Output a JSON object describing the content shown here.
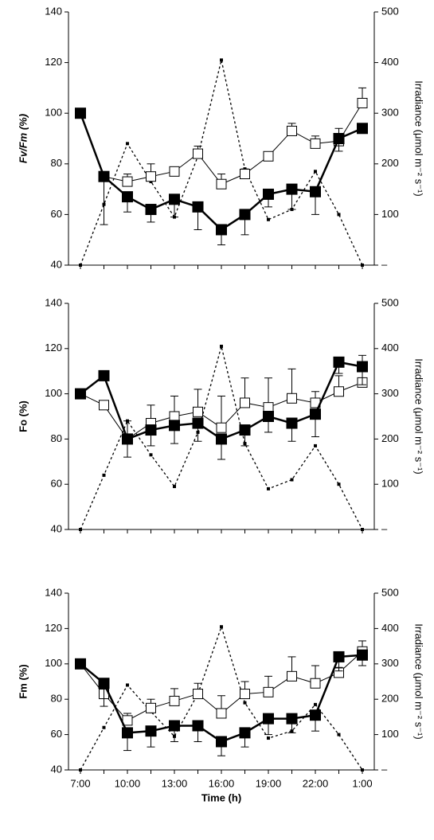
{
  "chart_data": [
    {
      "type": "line",
      "ylabel": "Fv/Fm (%)",
      "y2label": "Irradiance (μmol m⁻² s⁻¹)",
      "categories": [
        "7:00",
        null,
        "10:00",
        null,
        "13:00",
        null,
        "16:00",
        null,
        "19:00",
        null,
        "22:00",
        null,
        "1:00"
      ],
      "ylim": [
        40,
        140
      ],
      "yticks": [
        40,
        60,
        80,
        100,
        120,
        140
      ],
      "y2lim": [
        0,
        500
      ],
      "y2ticks": [
        {
          "value": 0,
          "label": "–"
        },
        100,
        200,
        300,
        400,
        500
      ],
      "series": [
        {
          "color": "#000000",
          "marker": "dot",
          "dash": true,
          "axis": "y2",
          "values": [
            0,
            120,
            240,
            165,
            95,
            215,
            405,
            190,
            90,
            110,
            185,
            100,
            0
          ]
        },
        {
          "color": "#000000",
          "marker": "open",
          "values": [
            100,
            75,
            73,
            75,
            77,
            84,
            72,
            76,
            83,
            93,
            88,
            89,
            104
          ],
          "errors": [
            0,
            0,
            3,
            5,
            0,
            3,
            4,
            2,
            0,
            3,
            3,
            5,
            6
          ]
        },
        {
          "color": "#000000",
          "marker": "filled",
          "values": [
            100,
            75,
            67,
            62,
            66,
            63,
            54,
            60,
            68,
            70,
            69,
            90,
            94
          ],
          "errors": [
            0,
            19,
            6,
            5,
            7,
            9,
            6,
            8,
            5,
            8,
            9,
            5,
            0
          ]
        }
      ]
    },
    {
      "type": "line",
      "ylabel": "Fo (%)",
      "y2label": "Irradiance (μmol m⁻² s⁻¹)",
      "categories": [
        "7:00",
        null,
        "10:00",
        null,
        "13:00",
        null,
        "16:00",
        null,
        "19:00",
        null,
        "22:00",
        null,
        "1:00"
      ],
      "ylim": [
        40,
        140
      ],
      "yticks": [
        40,
        60,
        80,
        100,
        120,
        140
      ],
      "y2lim": [
        0,
        500
      ],
      "y2ticks": [
        {
          "value": 0,
          "label": "–"
        },
        100,
        200,
        300,
        400,
        500
      ],
      "series": [
        {
          "color": "#000000",
          "marker": "dot",
          "dash": true,
          "axis": "y2",
          "values": [
            0,
            120,
            240,
            165,
            95,
            215,
            405,
            190,
            90,
            110,
            185,
            100,
            0
          ]
        },
        {
          "color": "#000000",
          "marker": "open",
          "values": [
            100,
            95,
            80,
            87,
            90,
            92,
            85,
            96,
            94,
            98,
            96,
            101,
            105
          ],
          "errors": [
            0,
            0,
            8,
            8,
            9,
            10,
            14,
            11,
            13,
            13,
            5,
            7,
            12
          ]
        },
        {
          "color": "#000000",
          "marker": "filled",
          "values": [
            100,
            108,
            80,
            84,
            86,
            87,
            80,
            84,
            90,
            87,
            91,
            114,
            112
          ],
          "errors": [
            0,
            0,
            8,
            7,
            8,
            8,
            9,
            7,
            7,
            8,
            10,
            5,
            8
          ]
        }
      ]
    },
    {
      "type": "line",
      "ylabel": "Fm (%)",
      "y2label": "Irradiance (μmol m⁻² s⁻¹)",
      "xlabel": "Time (h)",
      "categories": [
        "7:00",
        null,
        "10:00",
        null,
        "13:00",
        null,
        "16:00",
        null,
        "19:00",
        null,
        "22:00",
        null,
        "1:00"
      ],
      "ylim": [
        40,
        140
      ],
      "yticks": [
        40,
        60,
        80,
        100,
        120,
        140
      ],
      "y2lim": [
        0,
        500
      ],
      "y2ticks": [
        {
          "value": 0,
          "label": "–"
        },
        100,
        200,
        300,
        400,
        500
      ],
      "series": [
        {
          "color": "#000000",
          "marker": "dot",
          "dash": true,
          "axis": "y2",
          "values": [
            0,
            120,
            240,
            165,
            95,
            215,
            405,
            190,
            90,
            110,
            185,
            100,
            0
          ]
        },
        {
          "color": "#000000",
          "marker": "open",
          "values": [
            100,
            83,
            68,
            75,
            79,
            83,
            72,
            83,
            84,
            93,
            89,
            95,
            107
          ],
          "errors": [
            0,
            8,
            4,
            5,
            7,
            6,
            10,
            7,
            9,
            11,
            10,
            3,
            6
          ]
        },
        {
          "color": "#000000",
          "marker": "filled",
          "values": [
            100,
            89,
            61,
            62,
            65,
            65,
            56,
            61,
            69,
            69,
            71,
            104,
            105
          ],
          "errors": [
            0,
            13,
            10,
            9,
            9,
            9,
            8,
            8,
            9,
            8,
            9,
            8,
            6
          ]
        }
      ]
    }
  ]
}
